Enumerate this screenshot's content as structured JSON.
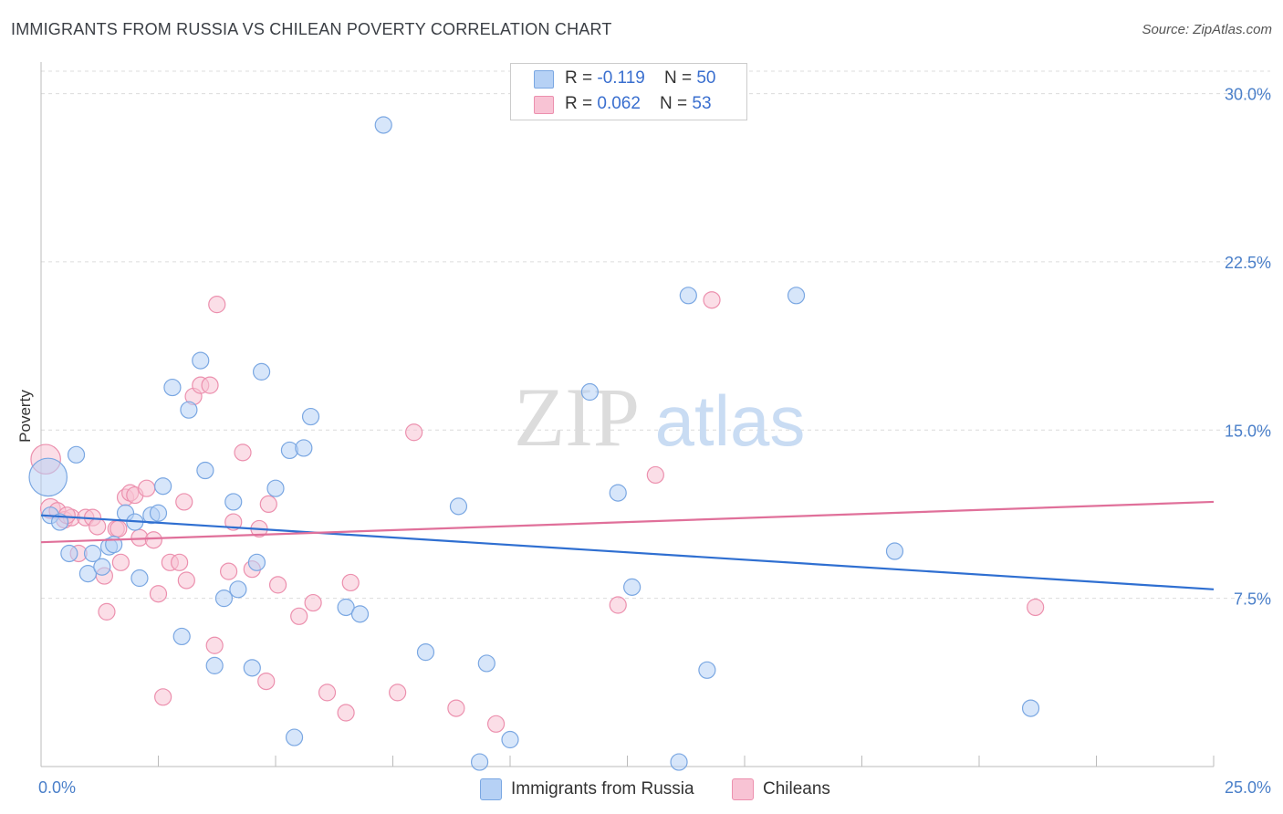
{
  "header": {
    "title": "IMMIGRANTS FROM RUSSIA VS CHILEAN POVERTY CORRELATION CHART",
    "source": "Source: ZipAtlas.com"
  },
  "watermark": {
    "zip": "ZIP",
    "atlas": "atlas"
  },
  "legend": {
    "russia": {
      "r_label": "R = ",
      "r_value": "-0.119",
      "n_label": "N = ",
      "n_value": "50"
    },
    "chileans": {
      "r_label": "R = ",
      "r_value": "0.062",
      "n_label": "N = ",
      "n_value": "53"
    }
  },
  "colors": {
    "russia_fill": "#b6d1f5",
    "russia_stroke": "#7aa7e2",
    "russia_line": "#2f6fd1",
    "chile_fill": "#f8c3d4",
    "chile_stroke": "#ec90ae",
    "chile_line": "#e0709a"
  },
  "chart_data": {
    "type": "scatter",
    "title": "IMMIGRANTS FROM RUSSIA VS CHILEAN POVERTY CORRELATION CHART",
    "xlabel": "",
    "ylabel": "Poverty",
    "xlim": [
      0,
      25
    ],
    "ylim": [
      0,
      31
    ],
    "x_tick_labels": [
      "0.0%",
      "25.0%"
    ],
    "y_ticks": [
      7.5,
      15.0,
      22.5,
      30.0
    ],
    "y_tick_labels": [
      "7.5%",
      "15.0%",
      "22.5%",
      "30.0%"
    ],
    "grid": true,
    "legend_position": "bottom",
    "series": [
      {
        "name": "Immigrants from Russia",
        "trend": {
          "x": [
            0,
            25
          ],
          "y": [
            11.2,
            7.9
          ]
        },
        "points": [
          {
            "x": 0.15,
            "y": 12.9,
            "s": 2.3
          },
          {
            "x": 0.2,
            "y": 11.2,
            "s": 1
          },
          {
            "x": 0.4,
            "y": 10.9,
            "s": 1
          },
          {
            "x": 0.75,
            "y": 13.9,
            "s": 1
          },
          {
            "x": 0.6,
            "y": 9.5,
            "s": 1
          },
          {
            "x": 1.0,
            "y": 8.6,
            "s": 1
          },
          {
            "x": 1.3,
            "y": 8.9,
            "s": 1
          },
          {
            "x": 1.1,
            "y": 9.5,
            "s": 1
          },
          {
            "x": 1.45,
            "y": 9.8,
            "s": 1
          },
          {
            "x": 1.55,
            "y": 9.9,
            "s": 1
          },
          {
            "x": 1.8,
            "y": 11.3,
            "s": 1
          },
          {
            "x": 2.0,
            "y": 10.9,
            "s": 1
          },
          {
            "x": 2.1,
            "y": 8.4,
            "s": 1
          },
          {
            "x": 2.35,
            "y": 11.2,
            "s": 1
          },
          {
            "x": 2.5,
            "y": 11.3,
            "s": 1
          },
          {
            "x": 2.6,
            "y": 12.5,
            "s": 1
          },
          {
            "x": 2.8,
            "y": 16.9,
            "s": 1
          },
          {
            "x": 3.0,
            "y": 5.8,
            "s": 1
          },
          {
            "x": 3.15,
            "y": 15.9,
            "s": 1
          },
          {
            "x": 3.4,
            "y": 18.1,
            "s": 1
          },
          {
            "x": 3.5,
            "y": 13.2,
            "s": 1
          },
          {
            "x": 3.7,
            "y": 4.5,
            "s": 1
          },
          {
            "x": 3.9,
            "y": 7.5,
            "s": 1
          },
          {
            "x": 4.1,
            "y": 11.8,
            "s": 1
          },
          {
            "x": 4.2,
            "y": 7.9,
            "s": 1
          },
          {
            "x": 4.5,
            "y": 4.4,
            "s": 1
          },
          {
            "x": 4.6,
            "y": 9.1,
            "s": 1
          },
          {
            "x": 4.7,
            "y": 17.6,
            "s": 1
          },
          {
            "x": 5.0,
            "y": 12.4,
            "s": 1
          },
          {
            "x": 5.3,
            "y": 14.1,
            "s": 1
          },
          {
            "x": 5.4,
            "y": 1.3,
            "s": 1
          },
          {
            "x": 5.6,
            "y": 14.2,
            "s": 1
          },
          {
            "x": 5.75,
            "y": 15.6,
            "s": 1
          },
          {
            "x": 6.5,
            "y": 7.1,
            "s": 1
          },
          {
            "x": 6.8,
            "y": 6.8,
            "s": 1
          },
          {
            "x": 7.3,
            "y": 28.6,
            "s": 1
          },
          {
            "x": 8.2,
            "y": 5.1,
            "s": 1
          },
          {
            "x": 8.9,
            "y": 11.6,
            "s": 1
          },
          {
            "x": 9.35,
            "y": 0.2,
            "s": 1
          },
          {
            "x": 9.5,
            "y": 4.6,
            "s": 1
          },
          {
            "x": 10.0,
            "y": 1.2,
            "s": 1
          },
          {
            "x": 11.7,
            "y": 16.7,
            "s": 1
          },
          {
            "x": 12.3,
            "y": 12.2,
            "s": 1
          },
          {
            "x": 12.6,
            "y": 8.0,
            "s": 1
          },
          {
            "x": 13.6,
            "y": 0.2,
            "s": 1
          },
          {
            "x": 13.8,
            "y": 21.0,
            "s": 1
          },
          {
            "x": 14.2,
            "y": 4.3,
            "s": 1
          },
          {
            "x": 16.1,
            "y": 21.0,
            "s": 1
          },
          {
            "x": 18.2,
            "y": 9.6,
            "s": 1
          },
          {
            "x": 21.1,
            "y": 2.6,
            "s": 1
          }
        ]
      },
      {
        "name": "Chileans",
        "trend": {
          "x": [
            0,
            25
          ],
          "y": [
            10.0,
            11.8
          ]
        },
        "points": [
          {
            "x": 0.1,
            "y": 13.7,
            "s": 1.8
          },
          {
            "x": 0.2,
            "y": 11.5,
            "s": 1.2
          },
          {
            "x": 0.35,
            "y": 11.4,
            "s": 1
          },
          {
            "x": 0.5,
            "y": 11.0,
            "s": 1
          },
          {
            "x": 0.65,
            "y": 11.1,
            "s": 1
          },
          {
            "x": 0.8,
            "y": 9.5,
            "s": 1
          },
          {
            "x": 0.95,
            "y": 11.1,
            "s": 1
          },
          {
            "x": 1.1,
            "y": 11.1,
            "s": 1
          },
          {
            "x": 1.2,
            "y": 10.7,
            "s": 1
          },
          {
            "x": 1.35,
            "y": 8.5,
            "s": 1
          },
          {
            "x": 1.4,
            "y": 6.9,
            "s": 1
          },
          {
            "x": 1.6,
            "y": 10.6,
            "s": 1
          },
          {
            "x": 1.7,
            "y": 9.1,
            "s": 1
          },
          {
            "x": 1.8,
            "y": 12.0,
            "s": 1
          },
          {
            "x": 1.9,
            "y": 12.2,
            "s": 1
          },
          {
            "x": 2.0,
            "y": 12.1,
            "s": 1
          },
          {
            "x": 2.1,
            "y": 10.2,
            "s": 1
          },
          {
            "x": 2.25,
            "y": 12.4,
            "s": 1
          },
          {
            "x": 2.4,
            "y": 10.1,
            "s": 1
          },
          {
            "x": 2.5,
            "y": 7.7,
            "s": 1
          },
          {
            "x": 2.6,
            "y": 3.1,
            "s": 1
          },
          {
            "x": 2.75,
            "y": 9.1,
            "s": 1
          },
          {
            "x": 2.95,
            "y": 9.1,
            "s": 1
          },
          {
            "x": 3.05,
            "y": 11.8,
            "s": 1
          },
          {
            "x": 3.1,
            "y": 8.3,
            "s": 1
          },
          {
            "x": 3.25,
            "y": 16.5,
            "s": 1
          },
          {
            "x": 3.4,
            "y": 17.0,
            "s": 1
          },
          {
            "x": 3.6,
            "y": 17.0,
            "s": 1
          },
          {
            "x": 3.7,
            "y": 5.4,
            "s": 1
          },
          {
            "x": 3.75,
            "y": 20.6,
            "s": 1
          },
          {
            "x": 4.0,
            "y": 8.7,
            "s": 1
          },
          {
            "x": 4.1,
            "y": 10.9,
            "s": 1
          },
          {
            "x": 4.3,
            "y": 14.0,
            "s": 1
          },
          {
            "x": 4.5,
            "y": 8.8,
            "s": 1
          },
          {
            "x": 4.65,
            "y": 10.6,
            "s": 1
          },
          {
            "x": 4.8,
            "y": 3.8,
            "s": 1
          },
          {
            "x": 4.85,
            "y": 11.7,
            "s": 1
          },
          {
            "x": 5.05,
            "y": 8.1,
            "s": 1
          },
          {
            "x": 5.5,
            "y": 6.7,
            "s": 1
          },
          {
            "x": 5.8,
            "y": 7.3,
            "s": 1
          },
          {
            "x": 6.1,
            "y": 3.3,
            "s": 1
          },
          {
            "x": 6.5,
            "y": 2.4,
            "s": 1
          },
          {
            "x": 6.6,
            "y": 8.2,
            "s": 1
          },
          {
            "x": 7.6,
            "y": 3.3,
            "s": 1
          },
          {
            "x": 7.95,
            "y": 14.9,
            "s": 1
          },
          {
            "x": 8.85,
            "y": 2.6,
            "s": 1
          },
          {
            "x": 9.7,
            "y": 1.9,
            "s": 1
          },
          {
            "x": 12.3,
            "y": 7.2,
            "s": 1
          },
          {
            "x": 13.1,
            "y": 13.0,
            "s": 1
          },
          {
            "x": 14.3,
            "y": 20.8,
            "s": 1
          },
          {
            "x": 21.2,
            "y": 7.1,
            "s": 1
          },
          {
            "x": 0.55,
            "y": 11.2,
            "s": 1
          },
          {
            "x": 1.65,
            "y": 10.6,
            "s": 1
          }
        ]
      }
    ]
  }
}
